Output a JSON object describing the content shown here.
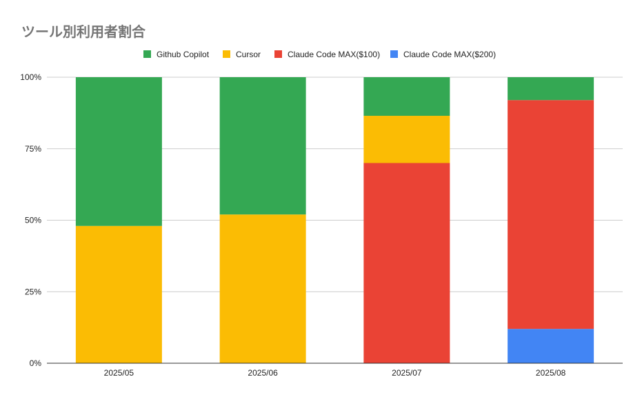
{
  "chart_data": {
    "type": "bar",
    "stacked": true,
    "normalized": true,
    "title": "ツール別利用者割合",
    "xlabel": "",
    "ylabel": "",
    "categories": [
      "2025/05",
      "2025/06",
      "2025/07",
      "2025/08"
    ],
    "y_ticks": [
      "0%",
      "25%",
      "50%",
      "75%",
      "100%"
    ],
    "ylim": [
      0,
      100
    ],
    "legend_position": "top",
    "grid": true,
    "series": [
      {
        "name": "Claude Code MAX($200)",
        "color": "#4285f4",
        "values": [
          0,
          0,
          0,
          12
        ]
      },
      {
        "name": "Claude Code MAX($100)",
        "color": "#ea4335",
        "values": [
          0,
          0,
          70,
          80
        ]
      },
      {
        "name": "Cursor",
        "color": "#fbbc04",
        "values": [
          48,
          52,
          16.5,
          0
        ]
      },
      {
        "name": "Github Copilot",
        "color": "#34a853",
        "values": [
          52,
          48,
          13.5,
          8
        ]
      }
    ],
    "legend_order": [
      "Github Copilot",
      "Cursor",
      "Claude Code MAX($100)",
      "Claude Code MAX($200)"
    ]
  }
}
